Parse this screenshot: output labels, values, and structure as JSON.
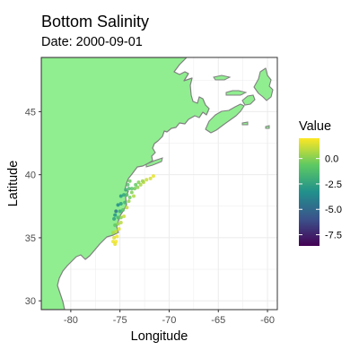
{
  "title": "Bottom Salinity",
  "subtitle": "Date: 2000-09-01",
  "map": {
    "xlabel": "Longitude",
    "ylabel": "Latitude",
    "xlim": [
      -83,
      -59
    ],
    "ylim": [
      29.3,
      49.3
    ],
    "x_ticks": [
      -80,
      -75,
      -70,
      -65,
      -60
    ],
    "x_tick_labels": [
      "-80",
      "-75",
      "-70",
      "-65",
      "-60"
    ],
    "y_ticks": [
      30,
      35,
      40,
      45
    ],
    "y_tick_labels": [
      "30",
      "35",
      "40",
      "45"
    ],
    "land_color": "#90ee90",
    "coast_color": "#808080",
    "grid": true
  },
  "legend": {
    "title": "Value",
    "range": [
      -8.6,
      2.0
    ],
    "ticks": [
      0.0,
      -2.5,
      -5.0,
      -7.5
    ],
    "tick_labels": [
      "0.0",
      "-2.5",
      "-5.0",
      "-7.5"
    ],
    "palette": "viridis",
    "position": "right"
  },
  "chart_data": {
    "type": "scatter",
    "points": [
      {
        "lon": -71.6,
        "lat": 39.9,
        "value": 1.6
      },
      {
        "lon": -71.9,
        "lat": 39.7,
        "value": 1.3
      },
      {
        "lon": -72.3,
        "lat": 39.6,
        "value": 1.1
      },
      {
        "lon": -72.6,
        "lat": 39.4,
        "value": 0.9
      },
      {
        "lon": -72.9,
        "lat": 39.2,
        "value": 0.6
      },
      {
        "lon": -73.2,
        "lat": 39.0,
        "value": 0.2
      },
      {
        "lon": -73.5,
        "lat": 38.9,
        "value": -0.3
      },
      {
        "lon": -73.8,
        "lat": 38.9,
        "value": -0.8
      },
      {
        "lon": -74.1,
        "lat": 38.9,
        "value": -1.3
      },
      {
        "lon": -74.4,
        "lat": 38.8,
        "value": -1.9
      },
      {
        "lon": -72.7,
        "lat": 39.5,
        "value": 0.4
      },
      {
        "lon": -73.1,
        "lat": 39.4,
        "value": 0.0
      },
      {
        "lon": -73.4,
        "lat": 39.2,
        "value": -0.6
      },
      {
        "lon": -73.8,
        "lat": 38.6,
        "value": -0.1
      },
      {
        "lon": -73.6,
        "lat": 38.3,
        "value": 0.7
      },
      {
        "lon": -74.0,
        "lat": 38.2,
        "value": -0.5
      },
      {
        "lon": -74.3,
        "lat": 38.4,
        "value": -1.1
      },
      {
        "lon": -74.6,
        "lat": 38.4,
        "value": -2.4
      },
      {
        "lon": -74.9,
        "lat": 38.3,
        "value": -3.0
      },
      {
        "lon": -74.1,
        "lat": 37.9,
        "value": 0.3
      },
      {
        "lon": -74.5,
        "lat": 37.8,
        "value": -1.6
      },
      {
        "lon": -74.9,
        "lat": 37.7,
        "value": -2.8
      },
      {
        "lon": -75.2,
        "lat": 37.6,
        "value": -3.5
      },
      {
        "lon": -74.3,
        "lat": 37.4,
        "value": 1.0
      },
      {
        "lon": -74.7,
        "lat": 37.2,
        "value": -0.9
      },
      {
        "lon": -75.0,
        "lat": 37.1,
        "value": -2.2
      },
      {
        "lon": -75.4,
        "lat": 37.1,
        "value": -4.5
      },
      {
        "lon": -75.5,
        "lat": 36.8,
        "value": -3.2
      },
      {
        "lon": -74.6,
        "lat": 36.7,
        "value": 1.2
      },
      {
        "lon": -74.9,
        "lat": 36.6,
        "value": 0.1
      },
      {
        "lon": -75.2,
        "lat": 36.6,
        "value": -1.4
      },
      {
        "lon": -75.6,
        "lat": 36.5,
        "value": -2.6
      },
      {
        "lon": -74.9,
        "lat": 36.2,
        "value": 0.9
      },
      {
        "lon": -75.2,
        "lat": 36.1,
        "value": 0.4
      },
      {
        "lon": -75.5,
        "lat": 36.0,
        "value": -0.7
      },
      {
        "lon": -75.1,
        "lat": 35.7,
        "value": 1.5
      },
      {
        "lon": -75.4,
        "lat": 35.5,
        "value": 1.1
      },
      {
        "lon": -75.7,
        "lat": 35.4,
        "value": 0.6
      },
      {
        "lon": -75.3,
        "lat": 35.1,
        "value": 1.8
      },
      {
        "lon": -75.6,
        "lat": 35.0,
        "value": 1.4
      },
      {
        "lon": -75.4,
        "lat": 34.7,
        "value": 1.9
      },
      {
        "lon": -75.7,
        "lat": 34.7,
        "value": 1.7
      },
      {
        "lon": -75.5,
        "lat": 34.5,
        "value": 1.6
      },
      {
        "lon": -74.2,
        "lat": 39.2,
        "value": -1.0
      },
      {
        "lon": -74.0,
        "lat": 39.5,
        "value": -0.4
      }
    ]
  }
}
